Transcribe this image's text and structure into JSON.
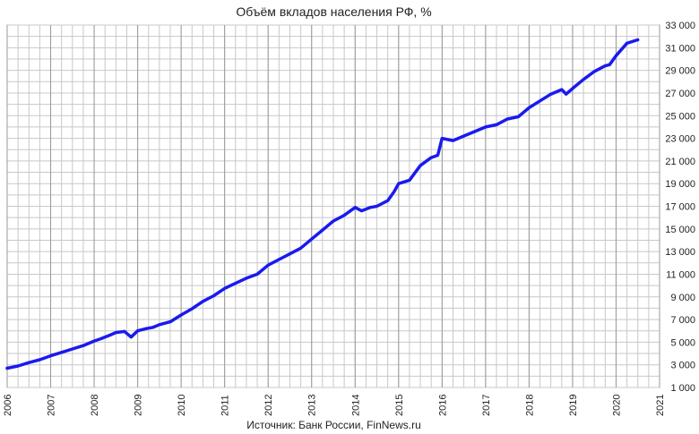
{
  "chart_data": {
    "type": "line",
    "title": "Объём вкладов населения РФ, %",
    "source": "Источник: Банк России, FinNews.ru",
    "x_ticks": [
      "2006",
      "2007",
      "2008",
      "2009",
      "2010",
      "2011",
      "2012",
      "2013",
      "2014",
      "2015",
      "2016",
      "2017",
      "2018",
      "2019",
      "2020",
      "2021"
    ],
    "y_ticks": [
      "1 000",
      "3 000",
      "5 000",
      "7 000",
      "9 000",
      "11 000",
      "13 000",
      "15 000",
      "17 000",
      "19 000",
      "21 000",
      "23 000",
      "25 000",
      "27 000",
      "29 000",
      "31 000",
      "33 000"
    ],
    "xlim": [
      2006,
      2021
    ],
    "ylim": [
      1000,
      33000
    ],
    "grid": true,
    "series_color": "#1a1aee",
    "series": [
      {
        "x": [
          2006.0,
          2006.25,
          2006.5,
          2006.75,
          2007.0,
          2007.25,
          2007.5,
          2007.75,
          2008.0,
          2008.15,
          2008.35,
          2008.5,
          2008.7,
          2008.85,
          2009.0,
          2009.2,
          2009.35,
          2009.5,
          2009.75,
          2010.0,
          2010.25,
          2010.5,
          2010.75,
          2011.0,
          2011.25,
          2011.5,
          2011.75,
          2012.0,
          2012.25,
          2012.5,
          2012.75,
          2013.0,
          2013.25,
          2013.5,
          2013.75,
          2014.0,
          2014.15,
          2014.35,
          2014.5,
          2014.75,
          2014.9,
          2015.0,
          2015.25,
          2015.5,
          2015.75,
          2015.9,
          2016.0,
          2016.25,
          2016.5,
          2016.75,
          2017.0,
          2017.25,
          2017.5,
          2017.75,
          2018.0,
          2018.25,
          2018.5,
          2018.75,
          2018.85,
          2019.0,
          2019.25,
          2019.5,
          2019.75,
          2019.85,
          2020.0,
          2020.25,
          2020.5
        ],
        "y": [
          2700,
          2900,
          3200,
          3450,
          3800,
          4100,
          4400,
          4700,
          5100,
          5300,
          5600,
          5850,
          5950,
          5450,
          6000,
          6200,
          6300,
          6550,
          6800,
          7400,
          7950,
          8600,
          9100,
          9750,
          10200,
          10650,
          11000,
          11800,
          12300,
          12800,
          13300,
          14100,
          14900,
          15700,
          16200,
          16900,
          16600,
          16900,
          17000,
          17500,
          18300,
          19000,
          19300,
          20600,
          21300,
          21500,
          23000,
          22800,
          23200,
          23600,
          24000,
          24200,
          24700,
          24900,
          25700,
          26300,
          26900,
          27300,
          26900,
          27400,
          28200,
          28900,
          29400,
          29500,
          30300,
          31400,
          31700
        ]
      }
    ]
  }
}
